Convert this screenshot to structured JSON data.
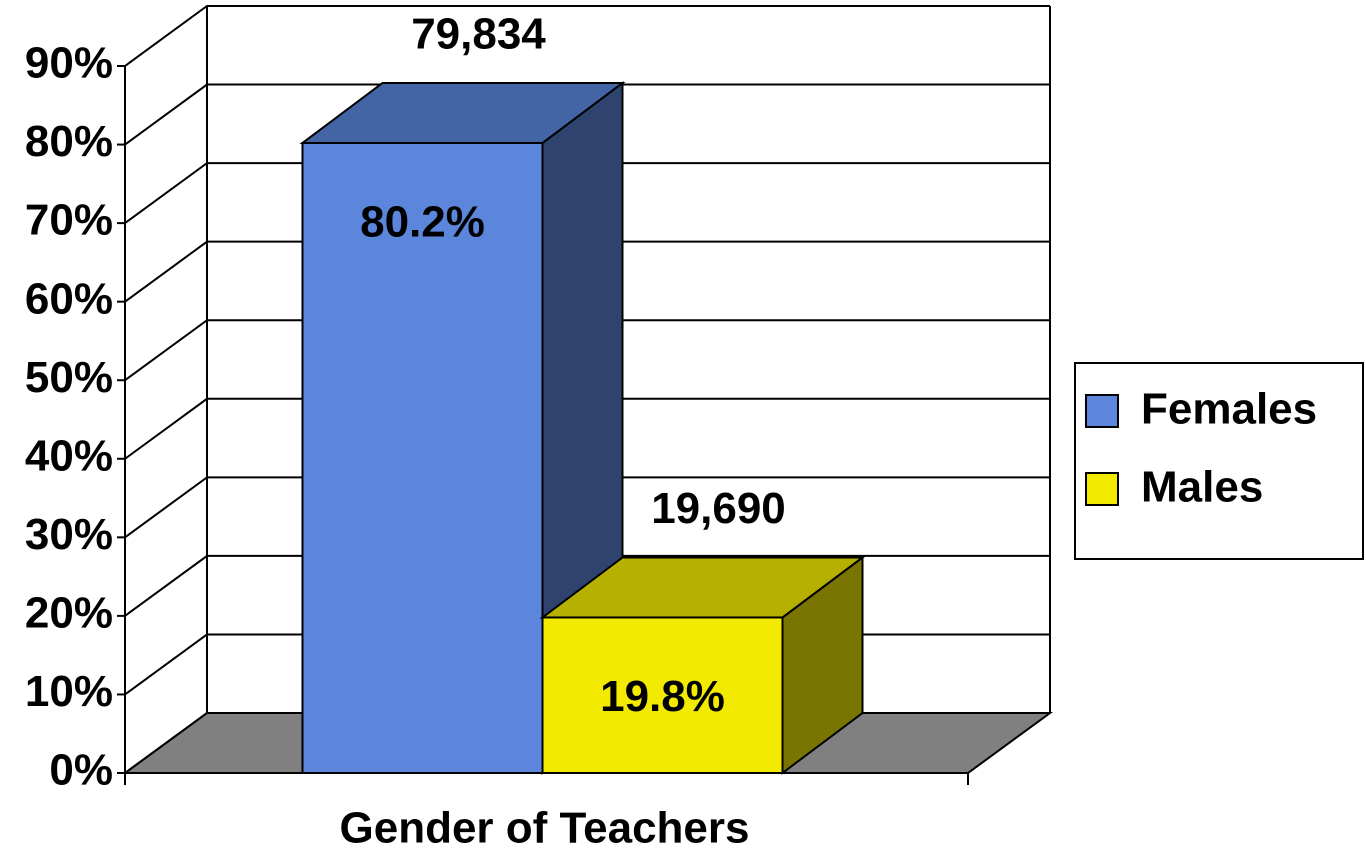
{
  "chart_data": {
    "type": "bar3d",
    "categories": [
      "Gender of Teachers"
    ],
    "series": [
      {
        "name": "Females",
        "color": "#5b86dc",
        "values": [
          80.2
        ],
        "value_labels": [
          "80.2%"
        ],
        "counts": [
          79834
        ],
        "count_labels": [
          "79,834"
        ]
      },
      {
        "name": "Males",
        "color": "#f2ea00",
        "values": [
          19.8
        ],
        "value_labels": [
          "19.8%"
        ],
        "counts": [
          19690
        ],
        "count_labels": [
          "19,690"
        ]
      }
    ],
    "ylim": [
      0,
      90
    ],
    "yticks": [
      {
        "value": 0,
        "label": "0%"
      },
      {
        "value": 10,
        "label": "10%"
      },
      {
        "value": 20,
        "label": "20%"
      },
      {
        "value": 30,
        "label": "30%"
      },
      {
        "value": 40,
        "label": "40%"
      },
      {
        "value": 50,
        "label": "50%"
      },
      {
        "value": 60,
        "label": "60%"
      },
      {
        "value": 70,
        "label": "70%"
      },
      {
        "value": 80,
        "label": "80%"
      },
      {
        "value": 90,
        "label": "90%"
      }
    ],
    "grid": true,
    "legend": "right"
  }
}
